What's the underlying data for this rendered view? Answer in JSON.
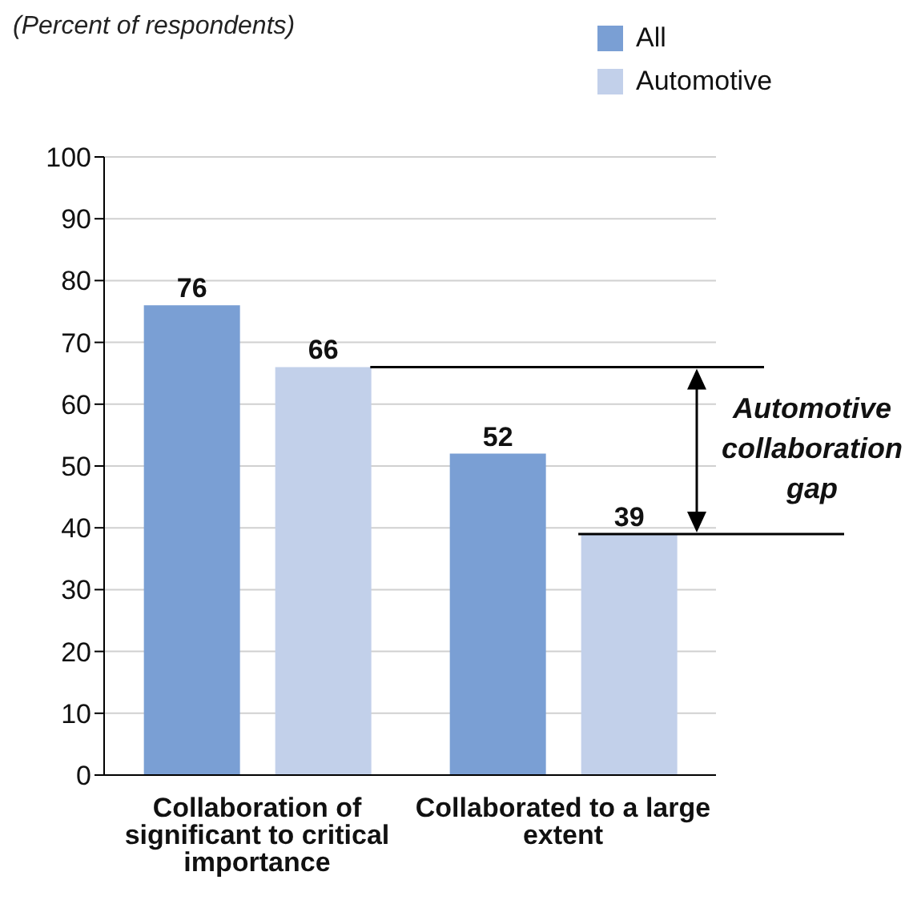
{
  "chart_data": {
    "type": "bar",
    "subtitle": "(Percent of respondents)",
    "categories": [
      "Collaboration of significant to critical importance",
      "Collaborated to a large extent"
    ],
    "series": [
      {
        "name": "All",
        "color": "#7a9fd4",
        "values": [
          76,
          52
        ]
      },
      {
        "name": "Automotive",
        "color": "#c2d0ea",
        "values": [
          66,
          39
        ]
      }
    ],
    "ylim": [
      0,
      100
    ],
    "yticks": [
      0,
      10,
      20,
      30,
      40,
      50,
      60,
      70,
      80,
      90,
      100
    ],
    "grid": "y",
    "legend": "top right",
    "data_labels": true,
    "ref_lines": [
      {
        "axis": "y",
        "value": 66,
        "color": "#000000"
      },
      {
        "axis": "y",
        "value": 39,
        "color": "#000000"
      }
    ],
    "annotations": [
      "Automotive collaboration gap"
    ]
  }
}
